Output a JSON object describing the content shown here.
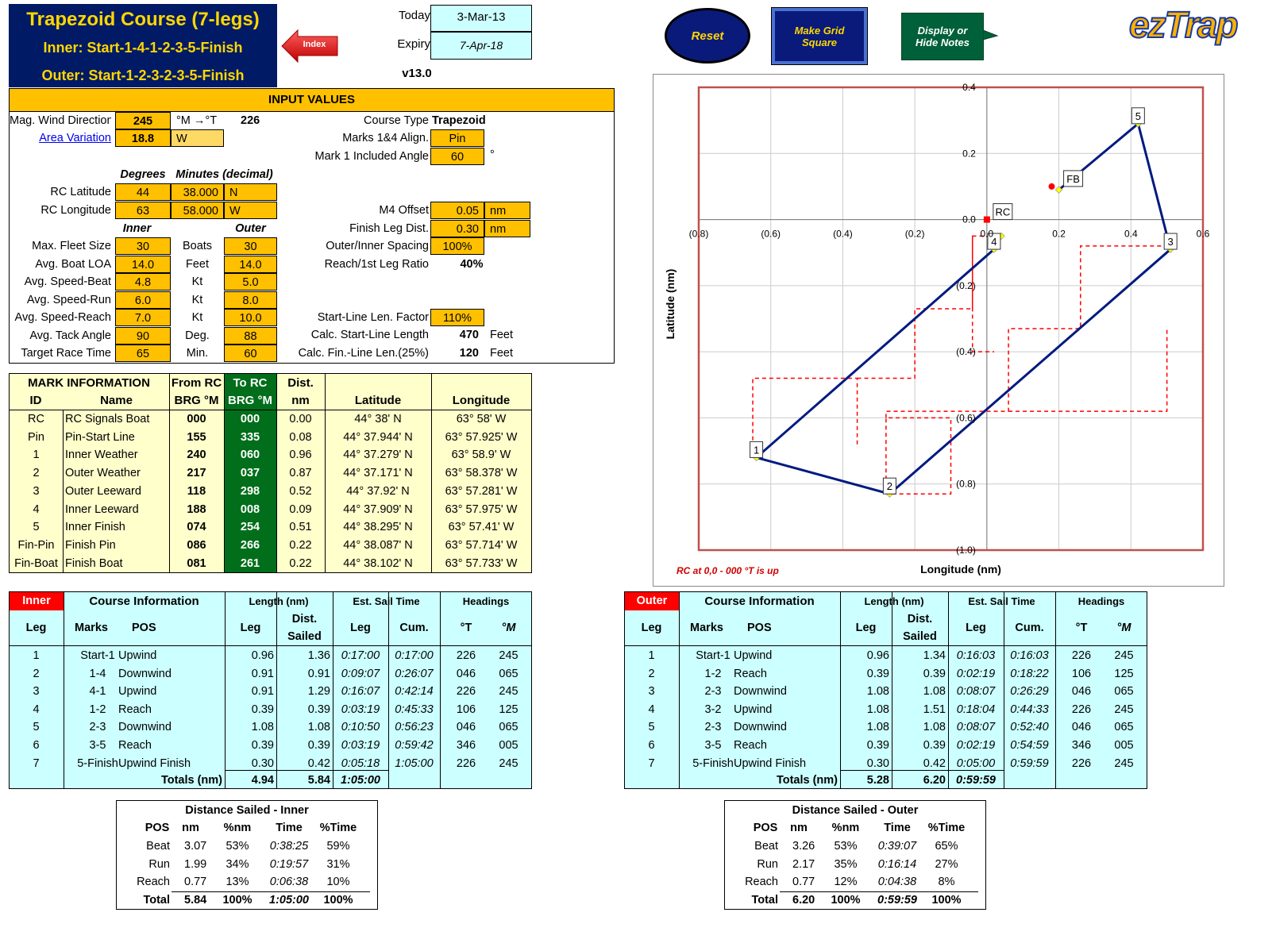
{
  "header": {
    "title": "Trapezoid Course (7-legs)",
    "inner_course": "Inner: Start-1-4-1-2-3-5-Finish",
    "outer_course": "Outer: Start-1-2-3-2-3-5-Finish",
    "index_label": "Index",
    "today_label": "Today",
    "today_value": "3-Mar-13",
    "expiry_label": "Expiry",
    "expiry_value": "7-Apr-18",
    "version": "v13.0"
  },
  "buttons": {
    "reset": "Reset",
    "grid_line1": "Make Grid",
    "grid_line2": "Square",
    "notes_line1": "Display or",
    "notes_line2": "Hide Notes",
    "logo": "ezTrap"
  },
  "input": {
    "title": "INPUT VALUES",
    "wind_label": "Mag. Wind Direction",
    "wind_value": "245",
    "wind_unit": "°M →°T",
    "wind_true": "226",
    "variation_label": "Area Variation",
    "variation_value": "18.8",
    "variation_dir": "W",
    "course_type_label": "Course Type",
    "course_type_value": "Trapezoid",
    "align_label": "Marks 1&4 Align.",
    "align_value": "Pin",
    "angle_label": "Mark 1 Included Angle",
    "angle_value": "60",
    "angle_unit": "°",
    "degrees_hdr": "Degrees",
    "minutes_hdr": "Minutes (decimal)",
    "lat_label": "RC Latitude",
    "lat_deg": "44",
    "lat_min": "38.000",
    "lat_dir": "N",
    "lon_label": "RC Longitude",
    "lon_deg": "63",
    "lon_min": "58.000",
    "lon_dir": "W",
    "m4_label": "M4 Offset",
    "m4_value": "0.05",
    "m4_unit": "nm",
    "finish_leg_label": "Finish Leg Dist.",
    "finish_leg_value": "0.30",
    "finish_leg_unit": "nm",
    "inner_hdr": "Inner",
    "outer_hdr": "Outer",
    "rows": [
      {
        "label": "Max. Fleet Size",
        "inner": "30",
        "unit": "Boats",
        "outer": "30"
      },
      {
        "label": "Avg. Boat LOA",
        "inner": "14.0",
        "unit": "Feet",
        "outer": "14.0"
      },
      {
        "label": "Avg. Speed-Beat",
        "inner": "4.8",
        "unit": "Kt",
        "outer": "5.0"
      },
      {
        "label": "Avg. Speed-Run",
        "inner": "6.0",
        "unit": "Kt",
        "outer": "8.0"
      },
      {
        "label": "Avg. Speed-Reach",
        "inner": "7.0",
        "unit": "Kt",
        "outer": "10.0"
      },
      {
        "label": "Avg. Tack Angle",
        "inner": "90",
        "unit": "Deg.",
        "outer": "88"
      },
      {
        "label": "Target Race Time",
        "inner": "65",
        "unit": "Min.",
        "outer": "60"
      }
    ],
    "spacing_label": "Outer/Inner Spacing",
    "spacing_value": "100%",
    "reach_label": "Reach/1st Leg Ratio",
    "reach_value": "40%",
    "startline_factor_label": "Start-Line Len. Factor",
    "startline_factor_value": "110%",
    "startline_calc_label": "Calc. Start-Line Length",
    "startline_calc_value": "470",
    "startline_calc_unit": "Feet",
    "finline_label": "Calc. Fin.-Line Len.(25%)",
    "finline_value": "120",
    "finline_unit": "Feet"
  },
  "marks": {
    "hdr_mark_info": "MARK INFORMATION",
    "hdr_id": "ID",
    "hdr_name": "Name",
    "hdr_from": "From RC",
    "hdr_from2": "BRG °M",
    "hdr_to": "To RC",
    "hdr_to2": "BRG °M",
    "hdr_dist": "Dist.",
    "hdr_dist2": "nm",
    "hdr_lat": "Latitude",
    "hdr_lon": "Longitude",
    "rows": [
      {
        "id": "RC",
        "name": "RC Signals Boat",
        "from": "000",
        "to": "000",
        "dist": "0.00",
        "lat": "44° 38' N",
        "lon": "63° 58' W"
      },
      {
        "id": "Pin",
        "name": "Pin-Start Line",
        "from": "155",
        "to": "335",
        "dist": "0.08",
        "lat": "44° 37.944' N",
        "lon": "63° 57.925' W"
      },
      {
        "id": "1",
        "name": "Inner Weather",
        "from": "240",
        "to": "060",
        "dist": "0.96",
        "lat": "44° 37.279' N",
        "lon": "63° 58.9' W"
      },
      {
        "id": "2",
        "name": "Outer Weather",
        "from": "217",
        "to": "037",
        "dist": "0.87",
        "lat": "44° 37.171' N",
        "lon": "63° 58.378' W"
      },
      {
        "id": "3",
        "name": "Outer Leeward",
        "from": "118",
        "to": "298",
        "dist": "0.52",
        "lat": "44° 37.92' N",
        "lon": "63° 57.281' W"
      },
      {
        "id": "4",
        "name": "Inner Leeward",
        "from": "188",
        "to": "008",
        "dist": "0.09",
        "lat": "44° 37.909' N",
        "lon": "63° 57.975' W"
      },
      {
        "id": "5",
        "name": "Inner Finish",
        "from": "074",
        "to": "254",
        "dist": "0.51",
        "lat": "44° 38.295' N",
        "lon": "63° 57.41' W"
      },
      {
        "id": "Fin-Pin",
        "name": "Finish Pin",
        "from": "086",
        "to": "266",
        "dist": "0.22",
        "lat": "44° 38.087' N",
        "lon": "63° 57.714' W"
      },
      {
        "id": "Fin-Boat",
        "name": "Finish Boat",
        "from": "081",
        "to": "261",
        "dist": "0.22",
        "lat": "44° 38.102' N",
        "lon": "63° 57.733' W"
      }
    ]
  },
  "chart": {
    "ylabel": "Latitude (nm)",
    "xlabel": "Longitude (nm)",
    "note": "RC at 0,0 - 000 °T is up",
    "x_ticks": [
      "(0.8)",
      "(0.6)",
      "(0.4)",
      "(0.2)",
      "0.0",
      "0.2",
      "0.4",
      "0.6"
    ],
    "y_ticks": [
      "0.4",
      "0.2",
      "0.0",
      "(0.2)",
      "(0.4)",
      "(0.6)",
      "(0.8)",
      "(1.0)"
    ],
    "marks": [
      {
        "label": "RC",
        "x": 0.0,
        "y": 0.0
      },
      {
        "label": "FB",
        "x": 0.2,
        "y": 0.1
      },
      {
        "label": "4",
        "x": 0.02,
        "y": -0.09
      },
      {
        "label": "1",
        "x": -0.64,
        "y": -0.72
      },
      {
        "label": "2",
        "x": -0.27,
        "y": -0.83
      },
      {
        "label": "3",
        "x": 0.51,
        "y": -0.09
      },
      {
        "label": "5",
        "x": 0.42,
        "y": 0.29
      }
    ]
  },
  "chart_data": {
    "type": "line",
    "xlabel": "Longitude (nm)",
    "ylabel": "Latitude (nm)",
    "xlim": [
      -0.8,
      0.6
    ],
    "ylim": [
      -1.0,
      0.4
    ],
    "series": [
      {
        "points": [
          [
            0.04,
            -0.05
          ],
          [
            0.02,
            -0.09
          ],
          [
            -0.64,
            -0.72
          ],
          [
            -0.27,
            -0.83
          ],
          [
            0.51,
            -0.09
          ],
          [
            0.42,
            0.29
          ],
          [
            0.2,
            0.09
          ]
        ]
      }
    ]
  },
  "inner_table": {
    "tag": "Inner",
    "hdr_info": "Course Information",
    "hdr_length": "Length (nm)",
    "hdr_est": "Est. Sail Time",
    "hdr_headings": "Headings",
    "hdr_leg": "Leg",
    "hdr_marks": "Marks",
    "hdr_pos": "POS",
    "hdr_len_leg": "Leg",
    "hdr_dist": "Dist.",
    "hdr_sailed": "Sailed",
    "hdr_time_leg": "Leg",
    "hdr_cum": "Cum.",
    "hdr_t": "°T",
    "hdr_m": "°M",
    "rows": [
      {
        "leg": "1",
        "marks": "Start-1",
        "pos": "Upwind",
        "len": "0.96",
        "dist": "1.36",
        "t_leg": "0:17:00",
        "t_cum": "0:17:00",
        "ht": "226",
        "hm": "245"
      },
      {
        "leg": "2",
        "marks": "1-4",
        "pos": "Downwind",
        "len": "0.91",
        "dist": "0.91",
        "t_leg": "0:09:07",
        "t_cum": "0:26:07",
        "ht": "046",
        "hm": "065"
      },
      {
        "leg": "3",
        "marks": "4-1",
        "pos": "Upwind",
        "len": "0.91",
        "dist": "1.29",
        "t_leg": "0:16:07",
        "t_cum": "0:42:14",
        "ht": "226",
        "hm": "245"
      },
      {
        "leg": "4",
        "marks": "1-2",
        "pos": "Reach",
        "len": "0.39",
        "dist": "0.39",
        "t_leg": "0:03:19",
        "t_cum": "0:45:33",
        "ht": "106",
        "hm": "125"
      },
      {
        "leg": "5",
        "marks": "2-3",
        "pos": "Downwind",
        "len": "1.08",
        "dist": "1.08",
        "t_leg": "0:10:50",
        "t_cum": "0:56:23",
        "ht": "046",
        "hm": "065"
      },
      {
        "leg": "6",
        "marks": "3-5",
        "pos": "Reach",
        "len": "0.39",
        "dist": "0.39",
        "t_leg": "0:03:19",
        "t_cum": "0:59:42",
        "ht": "346",
        "hm": "005"
      },
      {
        "leg": "7",
        "marks": "5-Finish",
        "pos": "Upwind Finish",
        "len": "0.30",
        "dist": "0.42",
        "t_leg": "0:05:18",
        "t_cum": "1:05:00",
        "ht": "226",
        "hm": "245"
      }
    ],
    "totals_label": "Totals (nm)",
    "total_len": "4.94",
    "total_dist": "5.84",
    "total_time": "1:05:00"
  },
  "outer_table": {
    "tag": "Outer",
    "hdr_info": "Course Information",
    "hdr_length": "Length (nm)",
    "hdr_est": "Est. Sail Time",
    "hdr_headings": "Headings",
    "hdr_leg": "Leg",
    "hdr_marks": "Marks",
    "hdr_pos": "POS",
    "hdr_len_leg": "Leg",
    "hdr_dist": "Dist.",
    "hdr_sailed": "Sailed",
    "hdr_time_leg": "Leg",
    "hdr_cum": "Cum.",
    "hdr_t": "°T",
    "hdr_m": "°M",
    "rows": [
      {
        "leg": "1",
        "marks": "Start-1",
        "pos": "Upwind",
        "len": "0.96",
        "dist": "1.34",
        "t_leg": "0:16:03",
        "t_cum": "0:16:03",
        "ht": "226",
        "hm": "245"
      },
      {
        "leg": "2",
        "marks": "1-2",
        "pos": "Reach",
        "len": "0.39",
        "dist": "0.39",
        "t_leg": "0:02:19",
        "t_cum": "0:18:22",
        "ht": "106",
        "hm": "125"
      },
      {
        "leg": "3",
        "marks": "2-3",
        "pos": "Downwind",
        "len": "1.08",
        "dist": "1.08",
        "t_leg": "0:08:07",
        "t_cum": "0:26:29",
        "ht": "046",
        "hm": "065"
      },
      {
        "leg": "4",
        "marks": "3-2",
        "pos": "Upwind",
        "len": "1.08",
        "dist": "1.51",
        "t_leg": "0:18:04",
        "t_cum": "0:44:33",
        "ht": "226",
        "hm": "245"
      },
      {
        "leg": "5",
        "marks": "2-3",
        "pos": "Downwind",
        "len": "1.08",
        "dist": "1.08",
        "t_leg": "0:08:07",
        "t_cum": "0:52:40",
        "ht": "046",
        "hm": "065"
      },
      {
        "leg": "6",
        "marks": "3-5",
        "pos": "Reach",
        "len": "0.39",
        "dist": "0.39",
        "t_leg": "0:02:19",
        "t_cum": "0:54:59",
        "ht": "346",
        "hm": "005"
      },
      {
        "leg": "7",
        "marks": "5-Finish",
        "pos": "Upwind Finish",
        "len": "0.30",
        "dist": "0.42",
        "t_leg": "0:05:00",
        "t_cum": "0:59:59",
        "ht": "226",
        "hm": "245"
      }
    ],
    "totals_label": "Totals (nm)",
    "total_len": "5.28",
    "total_dist": "6.20",
    "total_time": "0:59:59"
  },
  "inner_summary": {
    "title": "Distance Sailed - Inner",
    "hdr": [
      "POS",
      "nm",
      "%nm",
      "Time",
      "%Time"
    ],
    "rows": [
      {
        "pos": "Beat",
        "nm": "3.07",
        "pnm": "53%",
        "time": "0:38:25",
        "ptime": "59%"
      },
      {
        "pos": "Run",
        "nm": "1.99",
        "pnm": "34%",
        "time": "0:19:57",
        "ptime": "31%"
      },
      {
        "pos": "Reach",
        "nm": "0.77",
        "pnm": "13%",
        "time": "0:06:38",
        "ptime": "10%"
      },
      {
        "pos": "Total",
        "nm": "5.84",
        "pnm": "100%",
        "time": "1:05:00",
        "ptime": "100%"
      }
    ]
  },
  "outer_summary": {
    "title": "Distance Sailed - Outer",
    "hdr": [
      "POS",
      "nm",
      "%nm",
      "Time",
      "%Time"
    ],
    "rows": [
      {
        "pos": "Beat",
        "nm": "3.26",
        "pnm": "53%",
        "time": "0:39:07",
        "ptime": "65%"
      },
      {
        "pos": "Run",
        "nm": "2.17",
        "pnm": "35%",
        "time": "0:16:14",
        "ptime": "27%"
      },
      {
        "pos": "Reach",
        "nm": "0.77",
        "pnm": "12%",
        "time": "0:04:38",
        "ptime": "8%"
      },
      {
        "pos": "Total",
        "nm": "6.20",
        "pnm": "100%",
        "time": "0:59:59",
        "ptime": "100%"
      }
    ]
  }
}
